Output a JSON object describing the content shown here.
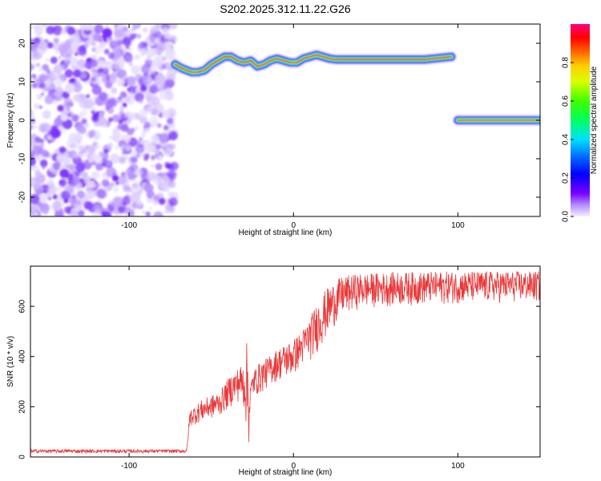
{
  "title": "S202.2025.312.11.22.G26",
  "chart_data": [
    {
      "type": "heatmap",
      "name": "spectrogram",
      "xlabel": "Height of straight line (km)",
      "ylabel": "Frequency (Hz)",
      "xlim": [
        -160,
        150
      ],
      "ylim": [
        -25,
        25
      ],
      "xticks": [
        -100,
        0,
        100
      ],
      "yticks": [
        -20,
        -10,
        0,
        10,
        20
      ],
      "noise_region": {
        "x_range": [
          -160,
          -72
        ],
        "y_range": [
          -25,
          25
        ]
      },
      "tone_track": {
        "x": [
          -72,
          -68,
          -62,
          -58,
          -54,
          -50,
          -46,
          -42,
          -38,
          -34,
          -30,
          -26,
          -22,
          -18,
          -14,
          -10,
          -6,
          -2,
          2,
          6,
          10,
          14,
          18,
          22,
          26,
          40,
          60,
          80,
          96
        ],
        "y": [
          14.5,
          13.5,
          12.5,
          12.5,
          13.0,
          14.5,
          15.5,
          16.5,
          16.5,
          15.5,
          15.0,
          15.5,
          14.0,
          14.5,
          15.5,
          16.0,
          15.5,
          15.0,
          15.0,
          16.0,
          16.5,
          17.0,
          16.5,
          16.0,
          15.8,
          15.8,
          15.8,
          15.8,
          16.5
        ]
      },
      "carrier_track": {
        "x_range": [
          100,
          150
        ],
        "y": 0
      },
      "colorbar": {
        "label": "Normalized spectral amplitude",
        "range": [
          0,
          1
        ],
        "ticks": [
          "0.0",
          "0.2",
          "0.4",
          "0.6",
          "0.8"
        ],
        "tick_values": [
          0,
          0.2,
          0.4,
          0.6,
          0.8
        ]
      }
    },
    {
      "type": "line",
      "name": "snr",
      "xlabel": "Height of straight line (km)",
      "ylabel": "SNR (10 * v/v)",
      "xlim": [
        -160,
        150
      ],
      "ylim": [
        0,
        760
      ],
      "xticks": [
        -100,
        0,
        100
      ],
      "yticks": [
        0,
        200,
        400,
        600
      ],
      "color": "#e8393a",
      "envelope": {
        "x": [
          -160,
          -65,
          -63,
          -55,
          -45,
          -38,
          -33,
          -30,
          -28,
          -27,
          -26,
          -25,
          -24,
          -20,
          -15,
          -10,
          -5,
          0,
          5,
          10,
          15,
          20,
          25,
          30,
          40,
          60,
          100,
          150
        ],
        "low": [
          15,
          15,
          120,
          140,
          160,
          200,
          220,
          180,
          60,
          40,
          200,
          230,
          240,
          250,
          280,
          300,
          310,
          320,
          360,
          380,
          420,
          470,
          520,
          560,
          590,
          600,
          610,
          615
        ],
        "high": [
          30,
          30,
          190,
          230,
          260,
          330,
          360,
          380,
          480,
          300,
          300,
          330,
          350,
          380,
          400,
          430,
          450,
          470,
          500,
          560,
          620,
          670,
          700,
          720,
          730,
          735,
          740,
          740
        ]
      }
    }
  ]
}
